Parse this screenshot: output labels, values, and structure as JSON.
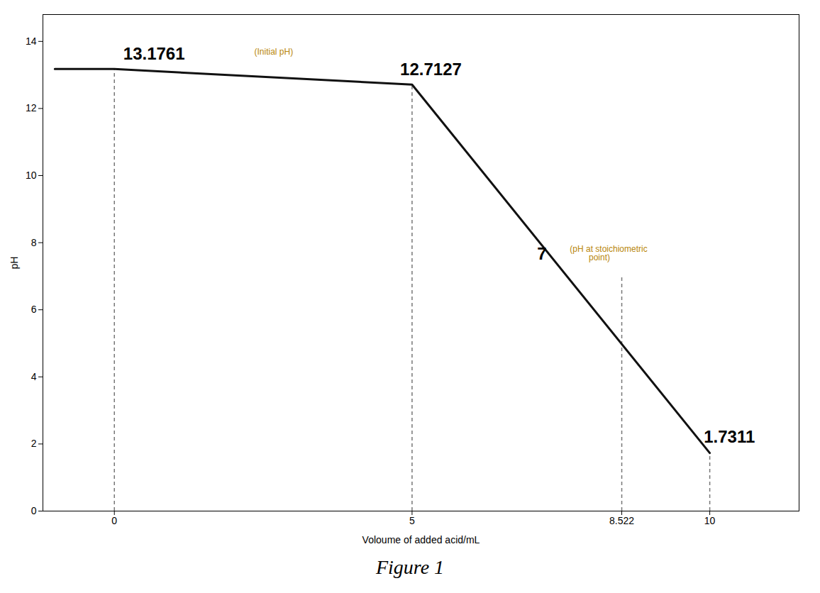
{
  "chart_data": {
    "type": "line",
    "title": "Figure 1",
    "xlabel": "Voloume of added acid/mL",
    "ylabel": "pH",
    "x": [
      -1,
      0,
      5,
      10
    ],
    "values": [
      13.1761,
      13.1761,
      12.7127,
      1.7311
    ],
    "color": "#111111",
    "xlim": [
      -1.2,
      11.5
    ],
    "ylim": [
      0,
      14.8
    ],
    "xticks": [
      0,
      5,
      8.522,
      10
    ],
    "yticks": [
      0,
      2,
      4,
      6,
      8,
      10,
      12,
      14
    ],
    "grid": false,
    "dashed_lines": {
      "x": [
        0,
        5,
        8.522,
        10
      ],
      "y": [
        13.1761,
        12.7127,
        7.0,
        1.7311
      ],
      "color": "#777777"
    },
    "annotations": [
      {
        "text": "13.1761",
        "x": 0.15,
        "y": 13.45,
        "color": "#000000"
      },
      {
        "text": "(Initial pH)",
        "x": 2.35,
        "y": 13.6,
        "color": "#b8860b"
      },
      {
        "text": "12.7127",
        "x": 4.8,
        "y": 13.0,
        "color": "#000000"
      },
      {
        "text": "7",
        "x": 7.1,
        "y": 7.5,
        "color": "#000000"
      },
      {
        "text": "(pH at stoichiometric\n        point)",
        "x": 7.65,
        "y": 7.9,
        "color": "#b8860b"
      },
      {
        "text": "1.7311",
        "x": 9.9,
        "y": 2.05,
        "color": "#000000"
      }
    ]
  }
}
